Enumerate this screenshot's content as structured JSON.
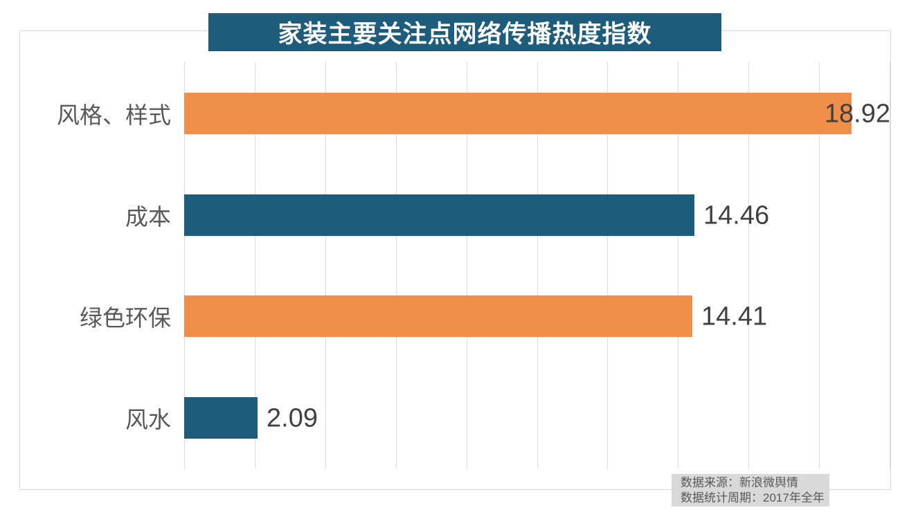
{
  "chart_data": {
    "type": "bar",
    "orientation": "horizontal",
    "title": "家装主要关注点网络传播热度指数",
    "categories": [
      "风格、样式",
      "成本",
      "绿色环保",
      "风水"
    ],
    "values": [
      18.92,
      14.46,
      14.41,
      2.09
    ],
    "value_labels": [
      "18.92",
      "14.46",
      "14.41",
      "2.09"
    ],
    "xlim": [
      0,
      20
    ],
    "gridline_step": 2,
    "grid": true,
    "legend": "none",
    "bar_colors": [
      "#ef8f4a",
      "#1e5c7b",
      "#ef8f4a",
      "#1e5c7b"
    ],
    "colors": {
      "title_band_bg": "#1e5c7b",
      "title_text": "#ffffff",
      "orange_series": "#ef8f4a",
      "teal_series": "#1e5c7b",
      "gridline": "#dcdcdc",
      "frame_border": "#d9d9d9",
      "category_text": "#595959",
      "value_text": "#404040",
      "source_box_bg": "#d9d9d9",
      "source_text": "#595959"
    },
    "source_lines": [
      "数据来源：新浪微舆情",
      "数据统计周期：2017年全年"
    ]
  }
}
